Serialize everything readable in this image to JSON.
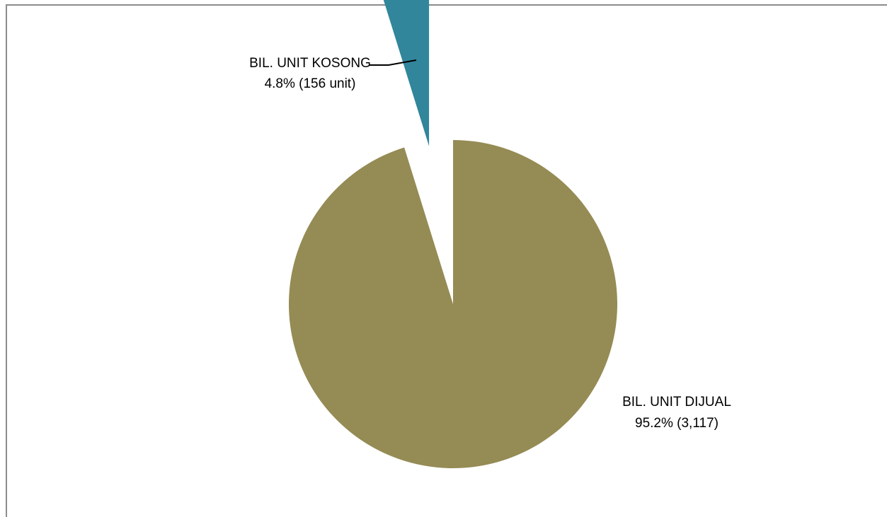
{
  "chart_data": {
    "type": "pie",
    "title": "",
    "slices": [
      {
        "name": "BIL. UNIT DIJUAL",
        "percent": 95.2,
        "value": 3117,
        "label_line1": "BIL. UNIT DIJUAL",
        "label_line2": "95.2%  (3,117)",
        "color": "#958b54",
        "exploded": false
      },
      {
        "name": "BIL. UNIT KOSONG",
        "percent": 4.8,
        "value": 156,
        "label_line1": "BIL. UNIT KOSONG",
        "label_line2": "4.8% (156 unit)",
        "color": "#31869b",
        "exploded": true
      }
    ],
    "legend": "none"
  }
}
